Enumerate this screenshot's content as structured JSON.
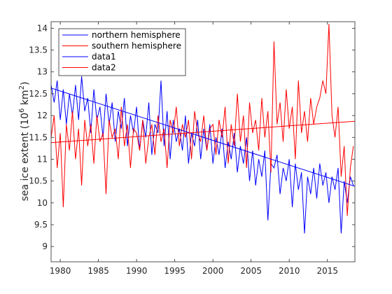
{
  "chart_data": {
    "type": "line",
    "title": "",
    "xlabel": "",
    "ylabel": "sea ice extent (10",
    "ylabel_exponent": "6",
    "ylabel_unit": " km",
    "ylabel_unit_exponent": "2",
    "ylabel_close": ")",
    "xlim": [
      1978.8,
      2018.6
    ],
    "ylim": [
      8.65,
      14.15
    ],
    "xticks": [
      1980,
      1985,
      1990,
      1995,
      2000,
      2005,
      2010,
      2015
    ],
    "xtick_labels": [
      "1980",
      "1985",
      "1990",
      "1995",
      "2000",
      "2005",
      "2010",
      "2015"
    ],
    "yticks": [
      9,
      9.5,
      10,
      10.5,
      11,
      11.5,
      12,
      12.5,
      13,
      13.5,
      14
    ],
    "ytick_labels": [
      "9",
      "9.5",
      "10",
      "10.5",
      "11",
      "11.5",
      "12",
      "12.5",
      "13",
      "13.5",
      "14"
    ],
    "grid": false,
    "legend_position": "top-left",
    "legend": [
      {
        "label": "northern hemisphere",
        "color": "#0000ff"
      },
      {
        "label": "southern hemisphere",
        "color": "#ff0000"
      },
      {
        "label": "data1",
        "color": "#0000ff"
      },
      {
        "label": "data2",
        "color": "#ff0000"
      }
    ],
    "series": [
      {
        "name": "data1",
        "color": "#0000ff",
        "x": [
          1978.8,
          1979.2,
          1979.6,
          1980.0,
          1980.4,
          1980.8,
          1981.2,
          1981.6,
          1982.0,
          1982.4,
          1982.8,
          1983.2,
          1983.6,
          1984.0,
          1984.4,
          1984.8,
          1985.2,
          1985.6,
          1986.0,
          1986.4,
          1986.8,
          1987.2,
          1987.6,
          1988.0,
          1988.4,
          1988.8,
          1989.2,
          1989.6,
          1990.0,
          1990.4,
          1990.8,
          1991.2,
          1991.6,
          1992.0,
          1992.4,
          1992.8,
          1993.2,
          1993.6,
          1994.0,
          1994.4,
          1994.8,
          1995.2,
          1995.6,
          1996.0,
          1996.4,
          1996.8,
          1997.2,
          1997.6,
          1998.0,
          1998.4,
          1998.8,
          1999.2,
          1999.6,
          2000.0,
          2000.4,
          2000.8,
          2001.2,
          2001.6,
          2002.0,
          2002.4,
          2002.8,
          2003.2,
          2003.6,
          2004.0,
          2004.4,
          2004.8,
          2005.2,
          2005.6,
          2006.0,
          2006.4,
          2006.8,
          2007.2,
          2007.6,
          2008.0,
          2008.4,
          2008.8,
          2009.2,
          2009.6,
          2010.0,
          2010.4,
          2010.8,
          2011.2,
          2011.6,
          2012.0,
          2012.4,
          2012.8,
          2013.2,
          2013.6,
          2014.0,
          2014.4,
          2014.8,
          2015.2,
          2015.6,
          2016.0,
          2016.4,
          2016.8,
          2017.2,
          2017.6,
          2018.0,
          2018.4
        ],
        "y": [
          12.7,
          12.3,
          12.8,
          11.9,
          12.6,
          11.8,
          12.5,
          12.0,
          12.7,
          11.9,
          12.9,
          12.1,
          12.4,
          11.6,
          12.6,
          11.9,
          12.2,
          11.5,
          12.5,
          11.8,
          12.3,
          11.4,
          12.1,
          11.7,
          12.4,
          11.3,
          12.0,
          11.6,
          12.2,
          11.2,
          11.9,
          11.5,
          12.3,
          11.1,
          11.8,
          11.6,
          12.8,
          11.3,
          12.1,
          11.0,
          11.9,
          11.4,
          11.7,
          11.2,
          12.0,
          10.9,
          11.6,
          11.3,
          11.9,
          11.0,
          11.7,
          11.2,
          11.8,
          10.9,
          11.5,
          11.1,
          11.7,
          10.8,
          11.4,
          11.0,
          11.6,
          10.7,
          11.3,
          10.9,
          11.5,
          10.5,
          11.2,
          10.4,
          11.0,
          10.6,
          11.2,
          9.6,
          10.9,
          10.8,
          11.1,
          10.2,
          10.8,
          10.5,
          11.0,
          9.9,
          10.9,
          10.3,
          10.7,
          9.3,
          10.6,
          10.2,
          10.8,
          10.1,
          10.9,
          10.4,
          10.7,
          10.0,
          10.6,
          10.3,
          10.8,
          9.3,
          10.5,
          10.0,
          10.6,
          10.4
        ]
      },
      {
        "name": "data2",
        "color": "#ff0000",
        "x": [
          1978.8,
          1979.2,
          1979.6,
          1980.0,
          1980.4,
          1980.8,
          1981.2,
          1981.6,
          1982.0,
          1982.4,
          1982.8,
          1983.2,
          1983.6,
          1984.0,
          1984.4,
          1984.8,
          1985.2,
          1985.6,
          1986.0,
          1986.4,
          1986.8,
          1987.2,
          1987.6,
          1988.0,
          1988.4,
          1988.8,
          1989.2,
          1989.6,
          1990.0,
          1990.4,
          1990.8,
          1991.2,
          1991.6,
          1992.0,
          1992.4,
          1992.8,
          1993.2,
          1993.6,
          1994.0,
          1994.4,
          1994.8,
          1995.2,
          1995.6,
          1996.0,
          1996.4,
          1996.8,
          1997.2,
          1997.6,
          1998.0,
          1998.4,
          1998.8,
          1999.2,
          1999.6,
          2000.0,
          2000.4,
          2000.8,
          2001.2,
          2001.6,
          2002.0,
          2002.4,
          2002.8,
          2003.2,
          2003.6,
          2004.0,
          2004.4,
          2004.8,
          2005.2,
          2005.6,
          2006.0,
          2006.4,
          2006.8,
          2007.2,
          2007.6,
          2008.0,
          2008.4,
          2008.8,
          2009.2,
          2009.6,
          2010.0,
          2010.4,
          2010.8,
          2011.2,
          2011.6,
          2012.0,
          2012.4,
          2012.8,
          2013.2,
          2013.6,
          2014.0,
          2014.4,
          2014.8,
          2015.2,
          2015.6,
          2016.0,
          2016.4,
          2016.8,
          2017.2,
          2017.6,
          2018.0,
          2018.4
        ],
        "y": [
          11.5,
          12.0,
          10.8,
          11.6,
          9.9,
          11.8,
          11.2,
          12.1,
          11.0,
          11.7,
          10.4,
          11.9,
          11.3,
          11.8,
          10.9,
          12.0,
          11.4,
          11.6,
          10.2,
          11.9,
          11.5,
          11.7,
          11.0,
          12.2,
          11.3,
          11.8,
          10.8,
          11.7,
          11.6,
          11.2,
          11.9,
          10.9,
          11.5,
          11.8,
          11.1,
          12.0,
          11.4,
          11.7,
          10.8,
          11.9,
          11.6,
          12.2,
          11.3,
          11.8,
          11.5,
          11.9,
          11.0,
          12.1,
          11.6,
          11.4,
          12.0,
          11.2,
          11.7,
          11.8,
          11.1,
          11.9,
          11.5,
          12.2,
          10.9,
          11.8,
          11.3,
          12.5,
          11.4,
          12.0,
          10.8,
          12.3,
          11.6,
          11.9,
          11.2,
          12.4,
          11.5,
          12.1,
          10.7,
          13.7,
          11.8,
          12.3,
          11.4,
          12.6,
          11.7,
          12.2,
          11.0,
          12.8,
          11.6,
          12.1,
          11.4,
          12.4,
          11.8,
          12.2,
          12.4,
          12.8,
          12.5,
          14.1,
          12.0,
          11.5,
          12.2,
          10.6,
          11.3,
          9.7,
          10.8,
          11.3
        ]
      }
    ],
    "trend_lines": [
      {
        "name": "northern hemisphere",
        "color": "#0000ff",
        "x": [
          1978.8,
          2018.6
        ],
        "y": [
          12.63,
          10.38
        ]
      },
      {
        "name": "southern hemisphere",
        "color": "#ff0000",
        "x": [
          1978.8,
          2018.6
        ],
        "y": [
          11.38,
          11.87
        ]
      }
    ]
  }
}
